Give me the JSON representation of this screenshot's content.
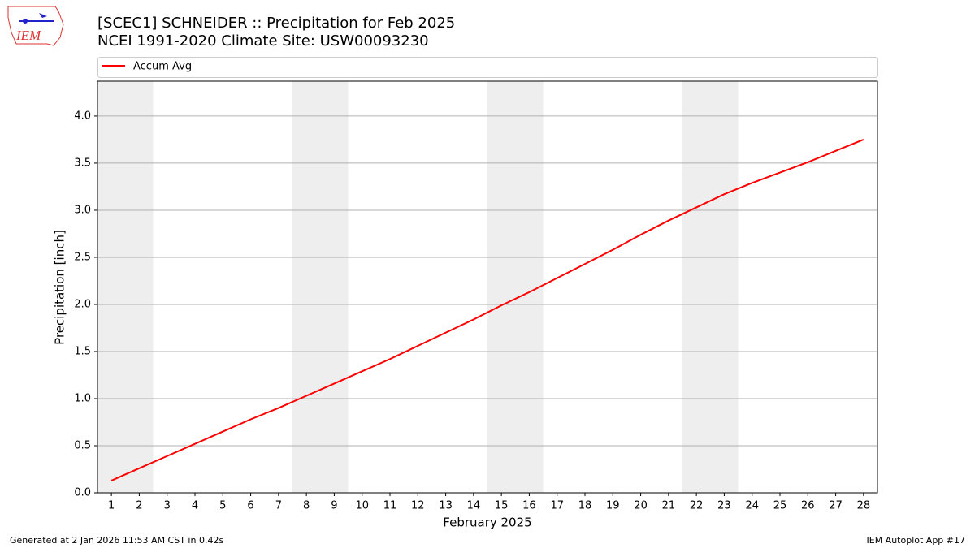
{
  "chart_data": {
    "type": "line",
    "title": "[SCEC1] SCHNEIDER :: Precipitation for Feb 2025",
    "subtitle": "NCEI 1991-2020 Climate Site: USW00093230",
    "xlabel": "February 2025",
    "ylabel": "Precipitation [inch]",
    "x": [
      1,
      2,
      3,
      4,
      5,
      6,
      7,
      8,
      9,
      10,
      11,
      12,
      13,
      14,
      15,
      16,
      17,
      18,
      19,
      20,
      21,
      22,
      23,
      24,
      25,
      26,
      27,
      28
    ],
    "series": [
      {
        "name": "Accum Avg",
        "color": "#ff0000",
        "values": [
          0.13,
          0.26,
          0.39,
          0.52,
          0.65,
          0.78,
          0.9,
          1.03,
          1.16,
          1.29,
          1.42,
          1.56,
          1.7,
          1.84,
          1.99,
          2.13,
          2.28,
          2.43,
          2.58,
          2.74,
          2.89,
          3.03,
          3.17,
          3.29,
          3.4,
          3.51,
          3.63,
          3.75
        ]
      }
    ],
    "xlim": [
      0.5,
      28.5
    ],
    "xticks": [
      1,
      2,
      3,
      4,
      5,
      6,
      7,
      8,
      9,
      10,
      11,
      12,
      13,
      14,
      15,
      16,
      17,
      18,
      19,
      20,
      21,
      22,
      23,
      24,
      25,
      26,
      27,
      28
    ],
    "ylim": [
      0,
      4.37
    ],
    "yticks": [
      {
        "value": 0,
        "label": "0.0"
      },
      0.5,
      {
        "value": 1,
        "label": "1.0"
      },
      1.5,
      {
        "value": 2,
        "label": "2.0"
      },
      2.5,
      {
        "value": 3,
        "label": "3.0"
      },
      3.5,
      {
        "value": 4,
        "label": "4.0"
      }
    ],
    "grid": true,
    "shade_color": "#eeeeee",
    "weekend_spans": [
      [
        0.5,
        2.5
      ],
      [
        7.5,
        9.5
      ],
      [
        14.5,
        16.5
      ],
      [
        21.5,
        23.5
      ]
    ]
  },
  "logo": "IEM",
  "footer_left": "Generated at 2 Jan 2026 11:53 AM CST in 0.42s",
  "footer_right": "IEM Autoplot App #17"
}
